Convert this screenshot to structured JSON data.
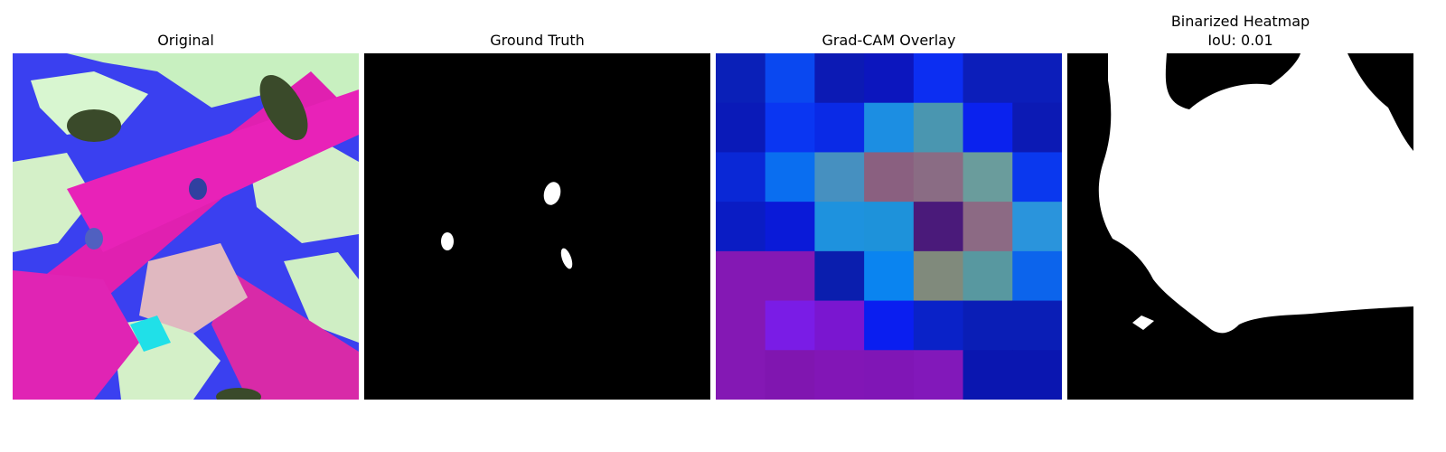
{
  "panels": {
    "original": {
      "title": "Original",
      "image": "pink-magenta-leaves-photo"
    },
    "ground_truth": {
      "title": "Ground Truth",
      "image": "binary-mask-three-small-white-blobs"
    },
    "gradcam": {
      "title": "Grad-CAM Overlay",
      "image": "7x7-heatmap-overlay"
    },
    "binarized": {
      "title_line1": "Binarized Heatmap",
      "title_line2": "IoU: 0.01",
      "image": "binarized-heatmap-mask"
    }
  },
  "gradcam_grid": [
    [
      "#0a20b8",
      "#0a48f0",
      "#0c1ab4",
      "#0c16be",
      "#0c2ef2",
      "#0c1eba",
      "#0c1eba"
    ],
    [
      "#0a1ab8",
      "#0a36f2",
      "#0a2ae6",
      "#1c8ee2",
      "#4a96b0",
      "#0a22ee",
      "#0c1ab4"
    ],
    [
      "#0a28d6",
      "#0a6ef0",
      "#4690c0",
      "#8a6080",
      "#8a6c84",
      "#6a9c9c",
      "#0a38ee"
    ],
    [
      "#0a1cc4",
      "#0a1ad8",
      "#1e92de",
      "#1e92da",
      "#4a1a7a",
      "#8c6a84",
      "#2a94dc"
    ],
    [
      "#8418b4",
      "#8418b4",
      "#0a1eae",
      "#0a84f0",
      "#808a7c",
      "#5898a0",
      "#0c64ec"
    ],
    [
      "#8418b4",
      "#7a1ce6",
      "#7a16d0",
      "#0a1ef0",
      "#0a22c8",
      "#0a1eb6",
      "#0a1eb6"
    ],
    [
      "#8418b4",
      "#8016b0",
      "#8216b6",
      "#8016b6",
      "#8218ba",
      "#0a16b0",
      "#0a16b0"
    ]
  ]
}
